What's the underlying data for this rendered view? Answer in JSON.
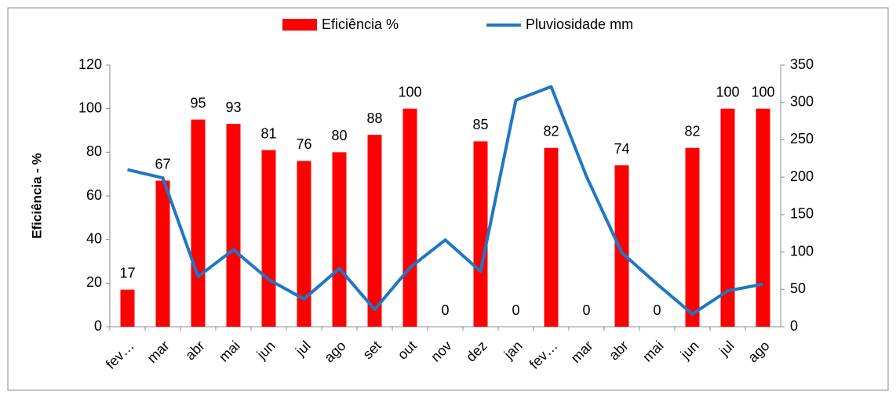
{
  "chart_data": {
    "type": "combo",
    "y_label": "Eficiência - %",
    "categories": [
      "fev…",
      "mar",
      "abr",
      "mai",
      "jun",
      "jul",
      "ago",
      "set",
      "out",
      "nov",
      "dez",
      "jan",
      "fev…",
      "mar",
      "abr",
      "mai",
      "jun",
      "jul",
      "ago"
    ],
    "series": [
      {
        "name": "Eficiência %",
        "type": "bar",
        "color": "#ff0000",
        "values": [
          17,
          67,
          95,
          93,
          81,
          76,
          80,
          88,
          100,
          0,
          85,
          0,
          82,
          0,
          74,
          0,
          82,
          100,
          100
        ]
      },
      {
        "name": "Pluviosidade mm",
        "type": "line",
        "axis": "y2",
        "color": "#1f77c4",
        "values": [
          210,
          199,
          67,
          103,
          63,
          37,
          78,
          23,
          79,
          116,
          74,
          303,
          321,
          201,
          99,
          57,
          17,
          48,
          57
        ]
      }
    ],
    "ylim": [
      0,
      120
    ],
    "yticks": [
      0,
      20,
      40,
      60,
      80,
      100,
      120
    ],
    "y2lim": [
      0,
      350
    ],
    "y2ticks": [
      0,
      50,
      100,
      150,
      200,
      250,
      300,
      350
    ],
    "grid": false
  }
}
